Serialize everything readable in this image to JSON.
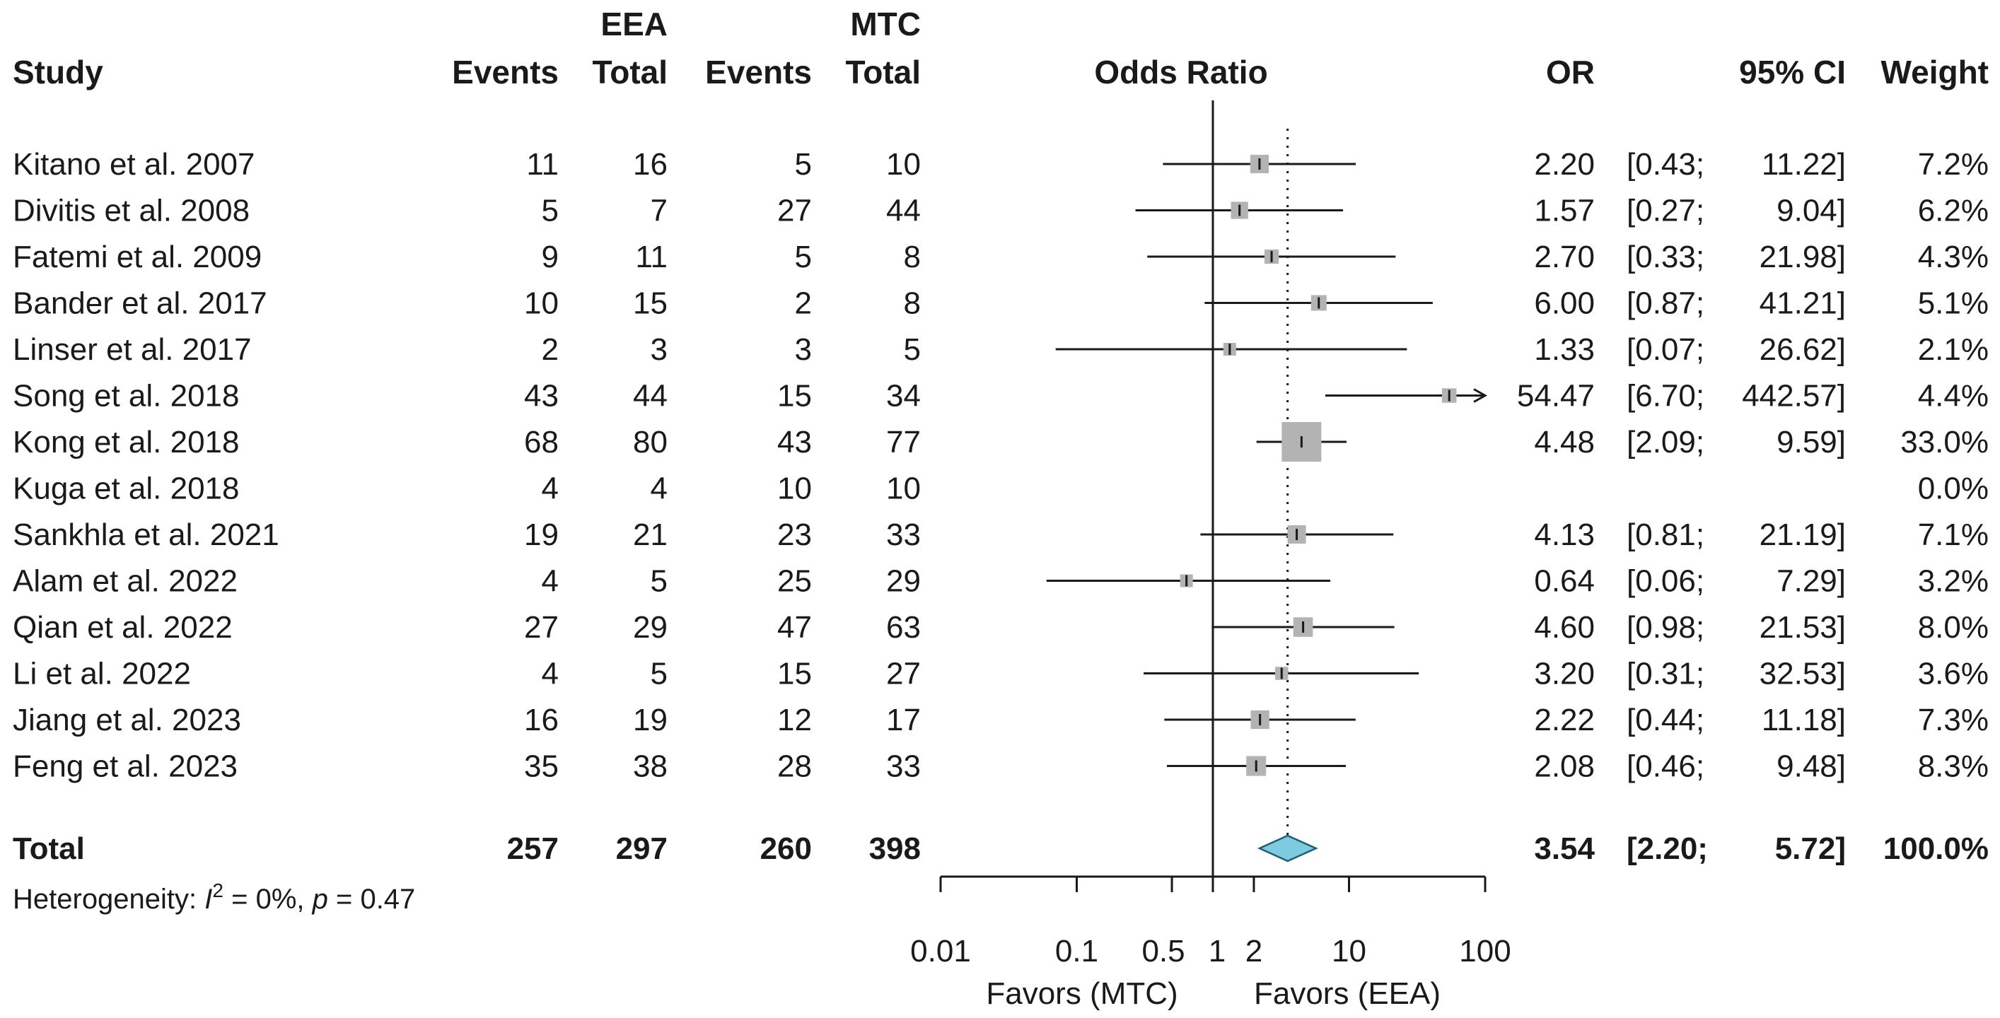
{
  "chart_data": {
    "type": "forest",
    "title": "",
    "headers": {
      "study": "Study",
      "group_a": "EEA",
      "group_b": "MTC",
      "events": "Events",
      "total": "Total",
      "plot": "Odds Ratio",
      "or": "OR",
      "ci": "95% CI",
      "weight": "Weight"
    },
    "studies": [
      {
        "name": "Kitano et al. 2007",
        "e1": "11",
        "n1": "16",
        "e2": "5",
        "n2": "10",
        "or": 2.2,
        "lo": 0.43,
        "hi": 11.22,
        "or_text": "2.20",
        "ci_lo_text": "[0.43;",
        "ci_hi_text": "11.22]",
        "weight": 7.2,
        "weight_text": "7.2%"
      },
      {
        "name": "Divitis et al. 2008",
        "e1": "5",
        "n1": "7",
        "e2": "27",
        "n2": "44",
        "or": 1.57,
        "lo": 0.27,
        "hi": 9.04,
        "or_text": "1.57",
        "ci_lo_text": "[0.27;",
        "ci_hi_text": "9.04]",
        "weight": 6.2,
        "weight_text": "6.2%"
      },
      {
        "name": "Fatemi et al. 2009",
        "e1": "9",
        "n1": "11",
        "e2": "5",
        "n2": "8",
        "or": 2.7,
        "lo": 0.33,
        "hi": 21.98,
        "or_text": "2.70",
        "ci_lo_text": "[0.33;",
        "ci_hi_text": "21.98]",
        "weight": 4.3,
        "weight_text": "4.3%"
      },
      {
        "name": "Bander et al. 2017",
        "e1": "10",
        "n1": "15",
        "e2": "2",
        "n2": "8",
        "or": 6.0,
        "lo": 0.87,
        "hi": 41.21,
        "or_text": "6.00",
        "ci_lo_text": "[0.87;",
        "ci_hi_text": "41.21]",
        "weight": 5.1,
        "weight_text": "5.1%"
      },
      {
        "name": "Linser et al. 2017",
        "e1": "2",
        "n1": "3",
        "e2": "3",
        "n2": "5",
        "or": 1.33,
        "lo": 0.07,
        "hi": 26.62,
        "or_text": "1.33",
        "ci_lo_text": "[0.07;",
        "ci_hi_text": "26.62]",
        "weight": 2.1,
        "weight_text": "2.1%"
      },
      {
        "name": "Song et al. 2018",
        "e1": "43",
        "n1": "44",
        "e2": "15",
        "n2": "34",
        "or": 54.47,
        "lo": 6.7,
        "hi": 442.57,
        "or_text": "54.47",
        "ci_lo_text": "[6.70;",
        "ci_hi_text": "442.57]",
        "weight": 4.4,
        "weight_text": "4.4%"
      },
      {
        "name": "Kong et al. 2018",
        "e1": "68",
        "n1": "80",
        "e2": "43",
        "n2": "77",
        "or": 4.48,
        "lo": 2.09,
        "hi": 9.59,
        "or_text": "4.48",
        "ci_lo_text": "[2.09;",
        "ci_hi_text": "9.59]",
        "weight": 33.0,
        "weight_text": "33.0%"
      },
      {
        "name": "Kuga et al. 2018",
        "e1": "4",
        "n1": "4",
        "e2": "10",
        "n2": "10",
        "or": null,
        "lo": null,
        "hi": null,
        "or_text": "",
        "ci_lo_text": "",
        "ci_hi_text": "",
        "weight": 0.0,
        "weight_text": "0.0%"
      },
      {
        "name": "Sankhla et al. 2021",
        "e1": "19",
        "n1": "21",
        "e2": "23",
        "n2": "33",
        "or": 4.13,
        "lo": 0.81,
        "hi": 21.19,
        "or_text": "4.13",
        "ci_lo_text": "[0.81;",
        "ci_hi_text": "21.19]",
        "weight": 7.1,
        "weight_text": "7.1%"
      },
      {
        "name": "Alam et al. 2022",
        "e1": "4",
        "n1": "5",
        "e2": "25",
        "n2": "29",
        "or": 0.64,
        "lo": 0.06,
        "hi": 7.29,
        "or_text": "0.64",
        "ci_lo_text": "[0.06;",
        "ci_hi_text": "7.29]",
        "weight": 3.2,
        "weight_text": "3.2%"
      },
      {
        "name": "Qian et al. 2022",
        "e1": "27",
        "n1": "29",
        "e2": "47",
        "n2": "63",
        "or": 4.6,
        "lo": 0.98,
        "hi": 21.53,
        "or_text": "4.60",
        "ci_lo_text": "[0.98;",
        "ci_hi_text": "21.53]",
        "weight": 8.0,
        "weight_text": "8.0%"
      },
      {
        "name": "Li et al. 2022",
        "e1": "4",
        "n1": "5",
        "e2": "15",
        "n2": "27",
        "or": 3.2,
        "lo": 0.31,
        "hi": 32.53,
        "or_text": "3.20",
        "ci_lo_text": "[0.31;",
        "ci_hi_text": "32.53]",
        "weight": 3.6,
        "weight_text": "3.6%"
      },
      {
        "name": "Jiang et al. 2023",
        "e1": "16",
        "n1": "19",
        "e2": "12",
        "n2": "17",
        "or": 2.22,
        "lo": 0.44,
        "hi": 11.18,
        "or_text": "2.22",
        "ci_lo_text": "[0.44;",
        "ci_hi_text": "11.18]",
        "weight": 7.3,
        "weight_text": "7.3%"
      },
      {
        "name": "Feng et al. 2023",
        "e1": "35",
        "n1": "38",
        "e2": "28",
        "n2": "33",
        "or": 2.08,
        "lo": 0.46,
        "hi": 9.48,
        "or_text": "2.08",
        "ci_lo_text": "[0.46;",
        "ci_hi_text": "9.48]",
        "weight": 8.3,
        "weight_text": "8.3%"
      }
    ],
    "total": {
      "label": "Total",
      "e1": "257",
      "n1": "297",
      "e2": "260",
      "n2": "398",
      "or": 3.54,
      "lo": 2.2,
      "hi": 5.72,
      "or_text": "3.54",
      "ci_lo_text": "[2.20;",
      "ci_hi_text": "5.72]",
      "weight_text": "100.0%"
    },
    "heterogeneity": {
      "prefix": "Heterogeneity: ",
      "i_symbol": "I",
      "i_sup": "2",
      "i_value": " = 0%, ",
      "p_symbol": "p",
      "p_value": " = 0.47"
    },
    "x_axis": {
      "scale": "log",
      "range": [
        0.01,
        100
      ],
      "ticks": [
        0.01,
        0.1,
        0.5,
        1,
        2,
        10,
        100
      ],
      "tick_labels": [
        "0.01",
        "0.1",
        "0.5",
        "1",
        "2",
        "10",
        "100"
      ],
      "null_line": 1
    },
    "favors_left": "Favors (MTC)",
    "favors_right": "Favors (EEA)",
    "colors": {
      "text": "#1a1a1a",
      "square": "#b3b3b3",
      "diamond_fill": "#7ecbe0",
      "diamond_stroke": "#1c5f75",
      "line": "#1a1a1a"
    }
  }
}
